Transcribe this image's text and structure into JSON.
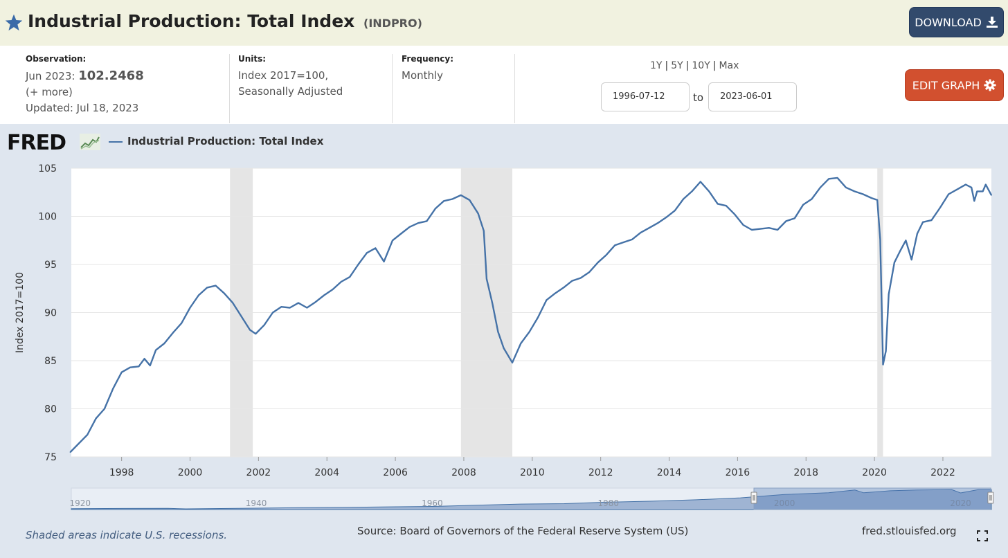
{
  "header": {
    "title": "Industrial Production: Total Index",
    "series_id": "(INDPRO)",
    "download_label": "DOWNLOAD",
    "download_icon": "download-icon",
    "star_icon": "star-icon",
    "star_color": "#3a6aa8"
  },
  "meta": {
    "observation_label": "Observation:",
    "observation_date": "Jun 2023:",
    "observation_value": "102.2468",
    "more": "(+ more)",
    "updated": "Updated: Jul 18, 2023",
    "units_label": "Units:",
    "units_line1": "Index 2017=100,",
    "units_line2": "Seasonally Adjusted",
    "frequency_label": "Frequency:",
    "frequency_value": "Monthly"
  },
  "range": {
    "presets": [
      "1Y",
      "5Y",
      "10Y",
      "Max"
    ],
    "separator": "|",
    "from": "1996-07-12",
    "to_label": "to",
    "to": "2023-06-01"
  },
  "edit_graph_label": "EDIT GRAPH",
  "edit_graph_icon": "gear-icon",
  "edit_graph_color": "#d2502f",
  "logo_text": "FRED",
  "legend_label": "Industrial Production: Total Index",
  "footer": {
    "note": "Shaded areas indicate U.S. recessions.",
    "source": "Source: Board of Governors of the Federal Reserve System (US)",
    "site": "fred.stlouisfed.org",
    "fullscreen_icon": "fullscreen-icon"
  },
  "chart_data": {
    "type": "line",
    "title": "",
    "xlabel": "",
    "ylabel": "Index 2017=100",
    "xlim": [
      "1996-07-12",
      "2023-06-01"
    ],
    "ylim": [
      75,
      105
    ],
    "grid": true,
    "legend_position": "top-left",
    "line_color": "#4572a7",
    "x_ticks": [
      "1998",
      "2000",
      "2002",
      "2004",
      "2006",
      "2008",
      "2010",
      "2012",
      "2014",
      "2016",
      "2018",
      "2020",
      "2022"
    ],
    "y_ticks": [
      75,
      80,
      85,
      90,
      95,
      100,
      105
    ],
    "recessions": [
      [
        "2001-03-01",
        "2001-11-01"
      ],
      [
        "2007-12-01",
        "2009-06-01"
      ],
      [
        "2020-02-01",
        "2020-04-01"
      ]
    ],
    "series": [
      {
        "values": [
          [
            "1996-07-01",
            75.5
          ],
          [
            "1996-10-01",
            76.4
          ],
          [
            "1997-01-01",
            77.3
          ],
          [
            "1997-04-01",
            79.0
          ],
          [
            "1997-07-01",
            80.0
          ],
          [
            "1997-10-01",
            82.1
          ],
          [
            "1998-01-01",
            83.8
          ],
          [
            "1998-04-01",
            84.3
          ],
          [
            "1998-07-01",
            84.4
          ],
          [
            "1998-09-01",
            85.2
          ],
          [
            "1998-11-01",
            84.5
          ],
          [
            "1999-01-01",
            86.1
          ],
          [
            "1999-04-01",
            86.8
          ],
          [
            "1999-07-01",
            87.9
          ],
          [
            "1999-10-01",
            88.9
          ],
          [
            "2000-01-01",
            90.5
          ],
          [
            "2000-04-01",
            91.8
          ],
          [
            "2000-07-01",
            92.6
          ],
          [
            "2000-10-01",
            92.8
          ],
          [
            "2001-01-01",
            92.0
          ],
          [
            "2001-04-01",
            91.0
          ],
          [
            "2001-07-01",
            89.6
          ],
          [
            "2001-10-01",
            88.2
          ],
          [
            "2001-12-01",
            87.8
          ],
          [
            "2002-03-01",
            88.7
          ],
          [
            "2002-06-01",
            90.0
          ],
          [
            "2002-09-01",
            90.6
          ],
          [
            "2002-12-01",
            90.5
          ],
          [
            "2003-03-01",
            91.0
          ],
          [
            "2003-06-01",
            90.5
          ],
          [
            "2003-09-01",
            91.1
          ],
          [
            "2003-12-01",
            91.8
          ],
          [
            "2004-03-01",
            92.4
          ],
          [
            "2004-06-01",
            93.2
          ],
          [
            "2004-09-01",
            93.7
          ],
          [
            "2004-12-01",
            95.0
          ],
          [
            "2005-03-01",
            96.2
          ],
          [
            "2005-06-01",
            96.7
          ],
          [
            "2005-09-01",
            95.3
          ],
          [
            "2005-12-01",
            97.5
          ],
          [
            "2006-03-01",
            98.2
          ],
          [
            "2006-06-01",
            98.9
          ],
          [
            "2006-09-01",
            99.3
          ],
          [
            "2006-12-01",
            99.5
          ],
          [
            "2007-03-01",
            100.8
          ],
          [
            "2007-06-01",
            101.6
          ],
          [
            "2007-09-01",
            101.8
          ],
          [
            "2007-12-01",
            102.2
          ],
          [
            "2008-03-01",
            101.7
          ],
          [
            "2008-06-01",
            100.3
          ],
          [
            "2008-08-01",
            98.5
          ],
          [
            "2008-09-01",
            93.5
          ],
          [
            "2008-11-01",
            91.0
          ],
          [
            "2009-01-01",
            88.0
          ],
          [
            "2009-03-01",
            86.3
          ],
          [
            "2009-06-01",
            84.8
          ],
          [
            "2009-09-01",
            86.8
          ],
          [
            "2009-12-01",
            88.0
          ],
          [
            "2010-03-01",
            89.5
          ],
          [
            "2010-06-01",
            91.3
          ],
          [
            "2010-09-01",
            92.0
          ],
          [
            "2010-12-01",
            92.6
          ],
          [
            "2011-03-01",
            93.3
          ],
          [
            "2011-06-01",
            93.6
          ],
          [
            "2011-09-01",
            94.2
          ],
          [
            "2011-12-01",
            95.2
          ],
          [
            "2012-03-01",
            96.0
          ],
          [
            "2012-06-01",
            97.0
          ],
          [
            "2012-09-01",
            97.3
          ],
          [
            "2012-12-01",
            97.6
          ],
          [
            "2013-03-01",
            98.3
          ],
          [
            "2013-06-01",
            98.8
          ],
          [
            "2013-09-01",
            99.3
          ],
          [
            "2013-12-01",
            99.9
          ],
          [
            "2014-03-01",
            100.6
          ],
          [
            "2014-06-01",
            101.8
          ],
          [
            "2014-09-01",
            102.6
          ],
          [
            "2014-12-01",
            103.6
          ],
          [
            "2015-03-01",
            102.6
          ],
          [
            "2015-06-01",
            101.3
          ],
          [
            "2015-09-01",
            101.1
          ],
          [
            "2015-12-01",
            100.2
          ],
          [
            "2016-03-01",
            99.1
          ],
          [
            "2016-06-01",
            98.6
          ],
          [
            "2016-09-01",
            98.7
          ],
          [
            "2016-12-01",
            98.8
          ],
          [
            "2017-03-01",
            98.6
          ],
          [
            "2017-06-01",
            99.5
          ],
          [
            "2017-09-01",
            99.8
          ],
          [
            "2017-12-01",
            101.2
          ],
          [
            "2018-03-01",
            101.8
          ],
          [
            "2018-06-01",
            103.0
          ],
          [
            "2018-09-01",
            103.9
          ],
          [
            "2018-12-01",
            104.0
          ],
          [
            "2019-03-01",
            103.0
          ],
          [
            "2019-06-01",
            102.6
          ],
          [
            "2019-09-01",
            102.3
          ],
          [
            "2019-12-01",
            101.9
          ],
          [
            "2020-02-01",
            101.7
          ],
          [
            "2020-03-01",
            97.6
          ],
          [
            "2020-04-01",
            84.6
          ],
          [
            "2020-05-01",
            86.0
          ],
          [
            "2020-06-01",
            91.9
          ],
          [
            "2020-08-01",
            95.2
          ],
          [
            "2020-10-01",
            96.4
          ],
          [
            "2020-12-01",
            97.5
          ],
          [
            "2021-02-01",
            95.5
          ],
          [
            "2021-04-01",
            98.2
          ],
          [
            "2021-06-01",
            99.4
          ],
          [
            "2021-09-01",
            99.6
          ],
          [
            "2021-12-01",
            100.9
          ],
          [
            "2022-03-01",
            102.3
          ],
          [
            "2022-06-01",
            102.8
          ],
          [
            "2022-09-01",
            103.3
          ],
          [
            "2022-11-01",
            103.0
          ],
          [
            "2022-12-01",
            101.6
          ],
          [
            "2023-01-01",
            102.6
          ],
          [
            "2023-03-01",
            102.6
          ],
          [
            "2023-04-01",
            103.3
          ],
          [
            "2023-06-01",
            102.2
          ]
        ]
      }
    ],
    "navigator": {
      "x_ticks": [
        "1920",
        "1940",
        "1960",
        "1980",
        "2000",
        "2020"
      ],
      "range": [
        1919,
        2023.5
      ],
      "selection": [
        "1996-07-12",
        "2023-06-01"
      ],
      "values": [
        [
          1919,
          4.5
        ],
        [
          1925,
          5.5
        ],
        [
          1930,
          6
        ],
        [
          1932,
          3.5
        ],
        [
          1940,
          7
        ],
        [
          1945,
          10
        ],
        [
          1950,
          11
        ],
        [
          1955,
          14
        ],
        [
          1960,
          16
        ],
        [
          1965,
          22
        ],
        [
          1970,
          28
        ],
        [
          1975,
          30
        ],
        [
          1980,
          38
        ],
        [
          1985,
          43
        ],
        [
          1990,
          50
        ],
        [
          1995,
          60
        ],
        [
          2000,
          77
        ],
        [
          2005,
          86
        ],
        [
          2008,
          100
        ],
        [
          2009,
          86
        ],
        [
          2012,
          96
        ],
        [
          2015,
          100
        ],
        [
          2019,
          102
        ],
        [
          2020,
          85
        ],
        [
          2022,
          102
        ],
        [
          2023.5,
          102
        ]
      ]
    }
  }
}
